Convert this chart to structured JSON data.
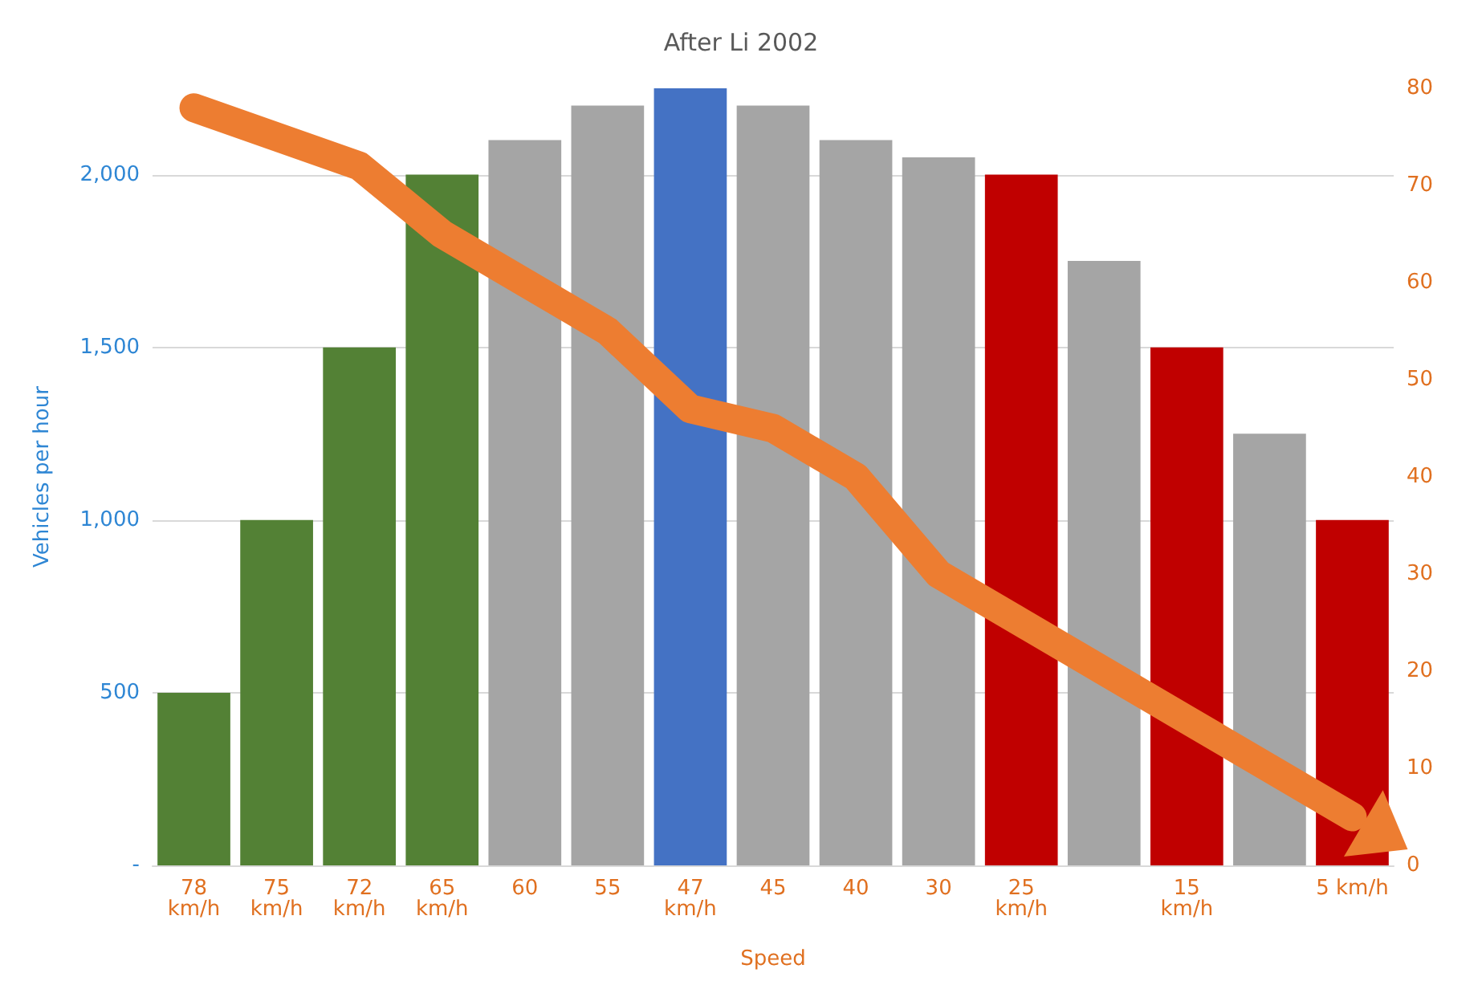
{
  "chart_data": {
    "type": "bar",
    "title": "After Li 2002",
    "xlabel": "Speed",
    "ylabel": "Vehicles per hour",
    "categories": [
      "78 km/h",
      "75 km/h",
      "72 km/h",
      "65 km/h",
      "60",
      "55",
      "47 km/h",
      "45",
      "40",
      "30",
      "25 km/h",
      null,
      "15 km/h",
      null,
      "5 km/h"
    ],
    "series": [
      {
        "values": [
          500,
          1000,
          1500,
          2000,
          2100,
          2200,
          2250,
          2200,
          2100,
          2050,
          2000,
          1750,
          1500,
          1250,
          1000
        ],
        "colors": [
          "#538135",
          "#538135",
          "#538135",
          "#538135",
          "#a5a5a5",
          "#a5a5a5",
          "#4472c4",
          "#a5a5a5",
          "#a5a5a5",
          "#a5a5a5",
          "#c00000",
          "#a5a5a5",
          "#c00000",
          "#a5a5a5",
          "#c00000"
        ]
      },
      {
        "type": "line",
        "axis": "y2",
        "color": "#ed7d31",
        "values": [
          78,
          75,
          72,
          65,
          60,
          55,
          47,
          45,
          40,
          30,
          25,
          20,
          15,
          10,
          5
        ]
      }
    ],
    "ylim": [
      0,
      2250
    ],
    "yticks": [
      {
        "value": 0,
        "label": "-"
      },
      500,
      {
        "value": 1000,
        "label": "1,000"
      },
      {
        "value": 1500,
        "label": "1,500"
      },
      {
        "value": 2000,
        "label": "2,000"
      }
    ],
    "y2lim": [
      0,
      80
    ],
    "y2ticks": [
      0,
      10,
      20,
      30,
      40,
      50,
      60,
      70,
      80
    ],
    "grid": "y"
  }
}
